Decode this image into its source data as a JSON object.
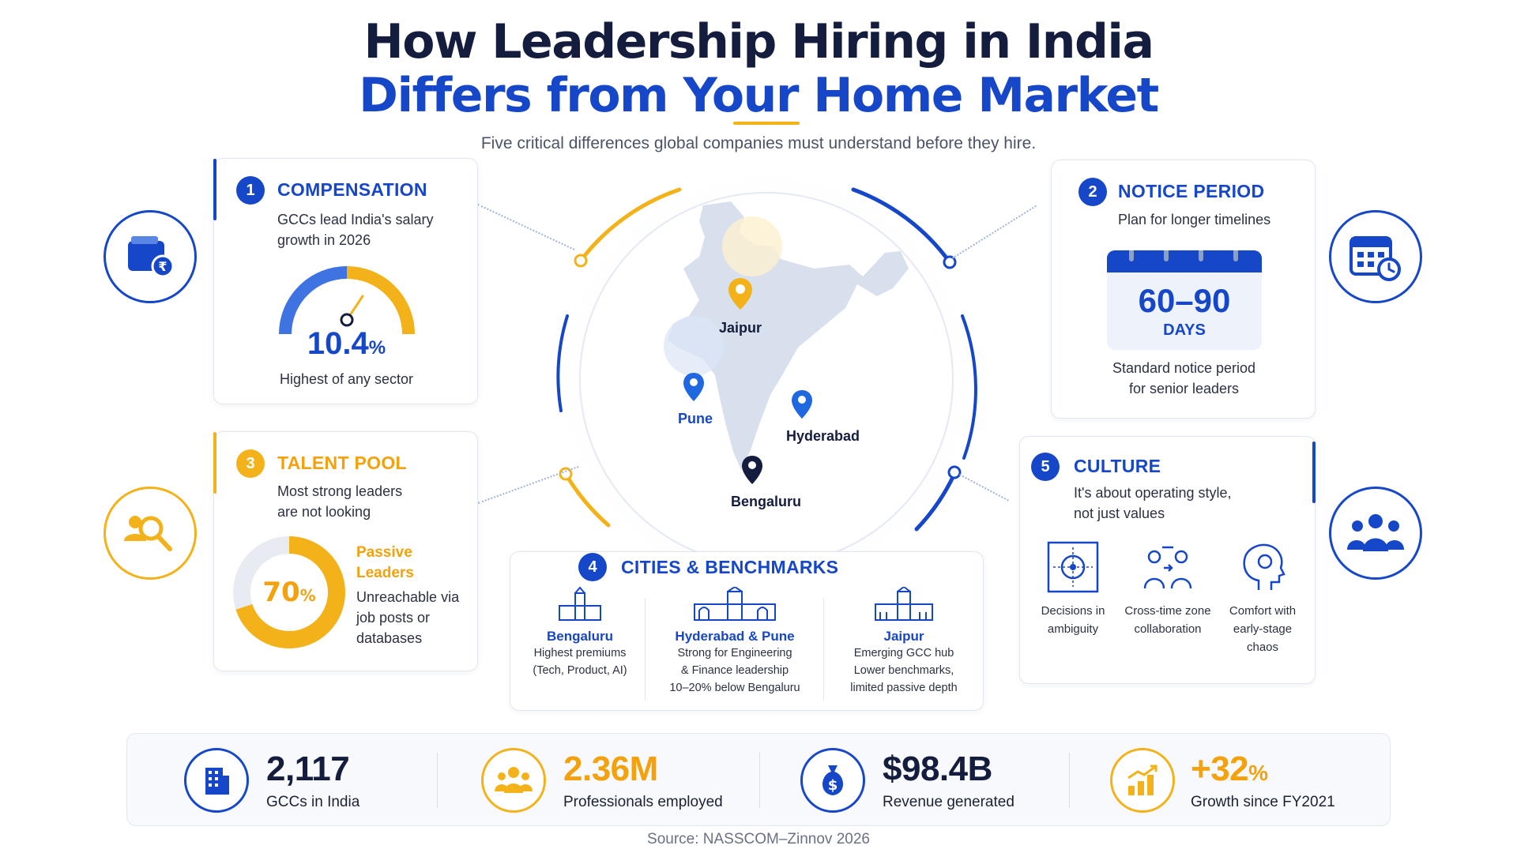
{
  "title": {
    "line1": "How Leadership Hiring in India",
    "line2": "Differs from Your Home Market",
    "subtitle": "Five critical differences global companies must understand before they hire."
  },
  "compensation": {
    "num": "1",
    "heading": "COMPENSATION",
    "text": "GCCs lead India's salary growth in 2026",
    "value": "10.4",
    "unit": "%",
    "caption": "Highest of any sector",
    "icon": "wallet-rupee-icon"
  },
  "notice_period": {
    "num": "2",
    "heading": "NOTICE PERIOD",
    "text": "Plan for longer timelines",
    "value": "60–90",
    "unit": "DAYS",
    "caption_line1": "Standard notice period",
    "caption_line2": "for senior leaders",
    "icon": "calendar-clock-icon"
  },
  "talent_pool": {
    "num": "3",
    "heading": "TALENT POOL",
    "text_line1": "Most strong leaders",
    "text_line2": "are not looking",
    "value": "70",
    "unit": "%",
    "percent_fill": 0.7,
    "legend_line1": "Passive",
    "legend_line2": "Leaders",
    "detail_line1": "Unreachable via",
    "detail_line2": "job posts or",
    "detail_line3": "databases",
    "icon": "people-search-icon"
  },
  "cities": {
    "num": "4",
    "heading": "CITIES & BENCHMARKS",
    "columns": [
      {
        "name": "Bengaluru",
        "desc_line1": "Highest premiums",
        "desc_line2": "(Tech, Product, AI)",
        "desc_line3": ""
      },
      {
        "name": "Hyderabad & Pune",
        "desc_line1": "Strong for Engineering",
        "desc_line2": "& Finance leadership",
        "desc_line3": "10–20% below Bengaluru"
      },
      {
        "name": "Jaipur",
        "desc_line1": "Emerging GCC hub",
        "desc_line2": "Lower benchmarks,",
        "desc_line3": "limited passive depth"
      }
    ]
  },
  "culture": {
    "num": "5",
    "heading": "CULTURE",
    "text_line1": "It's about operating style,",
    "text_line2": "not just values",
    "items": [
      {
        "line1": "Decisions in",
        "line2": "ambiguity",
        "line3": "",
        "icon": "ambiguity-target-icon"
      },
      {
        "line1": "Cross-time zone",
        "line2": "collaboration",
        "line3": "",
        "icon": "collaboration-icon"
      },
      {
        "line1": "Comfort with",
        "line2": "early-stage",
        "line3": "chaos",
        "icon": "head-mind-icon"
      }
    ],
    "icon": "team-icon"
  },
  "map": {
    "cities": [
      "Jaipur",
      "Pune",
      "Hyderabad",
      "Bengaluru"
    ]
  },
  "stats": [
    {
      "value": "2,117",
      "label": "GCCs in India",
      "icon": "building-icon"
    },
    {
      "value": "2.36M",
      "label": "Professionals employed",
      "icon": "people-group-icon"
    },
    {
      "value": "$98.4B",
      "label": "Revenue generated",
      "icon": "money-bag-icon"
    },
    {
      "value": "+32",
      "unit": "%",
      "label": "Growth since FY2021",
      "icon": "growth-chart-icon"
    }
  ],
  "source": "Source: NASSCOM–Zinnov 2026",
  "colors": {
    "navy": "#141d3d",
    "blue": "#1647c9",
    "gold": "#f3b21a"
  }
}
